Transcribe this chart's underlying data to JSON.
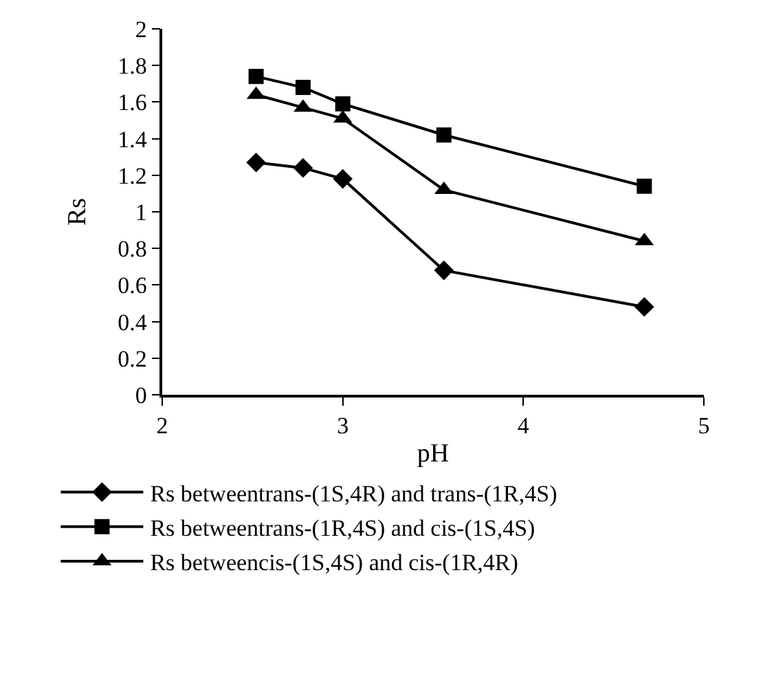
{
  "chart_data": {
    "type": "line",
    "xlabel": "pH",
    "ylabel": "Rs",
    "x": [
      2.52,
      2.78,
      3.0,
      3.56,
      4.67
    ],
    "series": [
      {
        "name": "Rs betweentrans-(1S,4R) and trans-(1R,4S)",
        "color": "#000000",
        "marker": "diamond",
        "values": [
          1.27,
          1.24,
          1.18,
          0.68,
          0.48
        ]
      },
      {
        "name": "Rs betweentrans-(1R,4S) and cis-(1S,4S)",
        "color": "#000000",
        "marker": "square",
        "values": [
          1.74,
          1.68,
          1.59,
          1.42,
          1.14
        ]
      },
      {
        "name": "Rs betweencis-(1S,4S) and cis-(1R,4R)",
        "color": "#000000",
        "marker": "triangle",
        "values": [
          1.64,
          1.57,
          1.51,
          1.12,
          0.84
        ]
      }
    ],
    "xlim": [
      2,
      5
    ],
    "xticks": [
      2,
      3,
      4,
      5
    ],
    "ylim": [
      0,
      2
    ],
    "yticks": [
      0,
      0.2,
      0.4,
      0.6,
      0.8,
      1,
      1.2,
      1.4,
      1.6,
      1.8,
      2
    ],
    "legend": "bottom",
    "line_style": "solid"
  }
}
